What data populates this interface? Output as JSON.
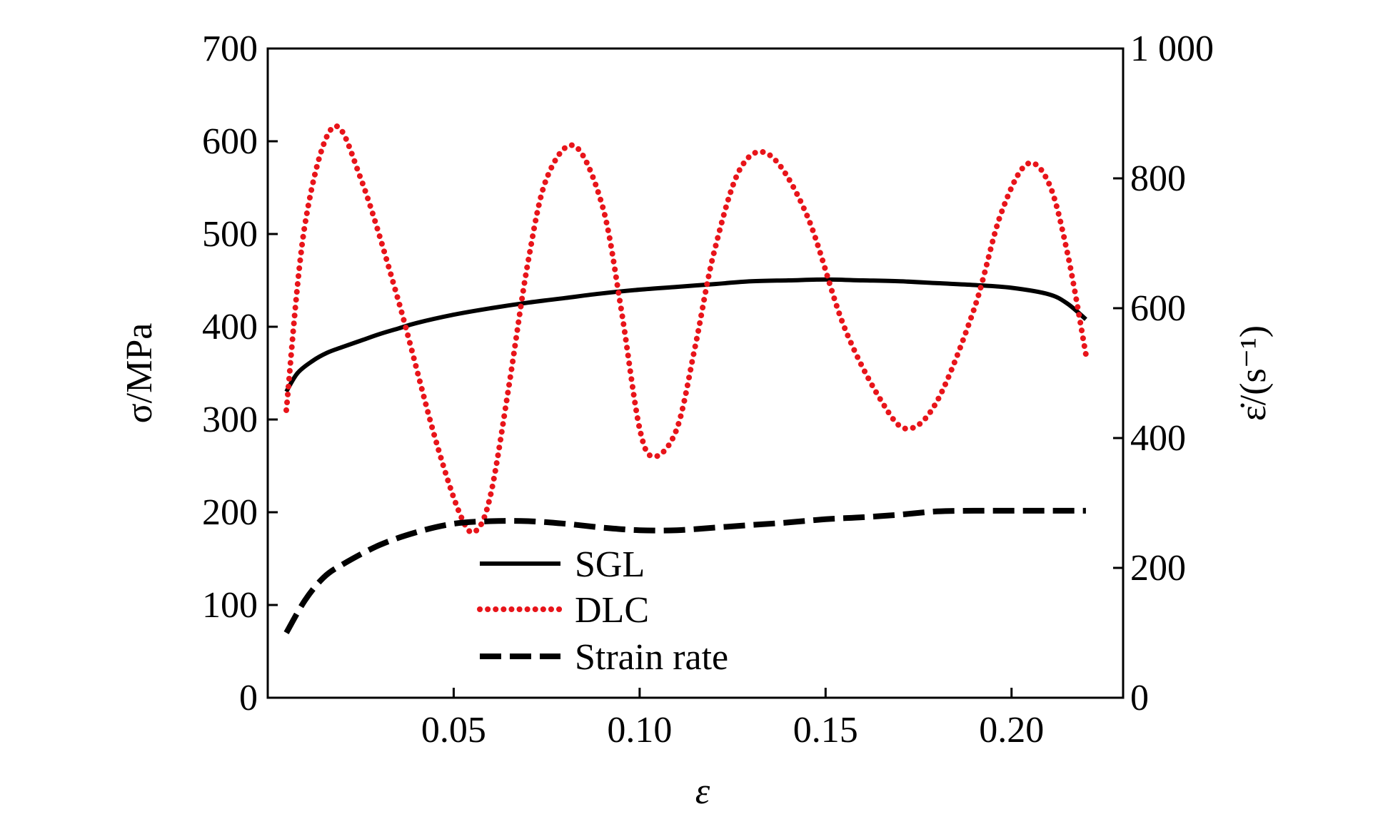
{
  "chart_data": {
    "type": "line",
    "title": "",
    "xlabel": "ε",
    "ylabel_left": "σ/MPa",
    "ylabel_right": "ε̇/(s⁻¹)",
    "xlim": [
      0.0,
      0.23
    ],
    "ylim_left": [
      0,
      700
    ],
    "ylim_right": [
      0,
      1000
    ],
    "x_ticks": [
      0.05,
      0.1,
      0.15,
      0.2
    ],
    "x_tick_labels": [
      "0.05",
      "0.10",
      "0.15",
      "0.20"
    ],
    "y_left_ticks": [
      0,
      100,
      200,
      300,
      400,
      500,
      600,
      700
    ],
    "y_left_tick_labels": [
      "0",
      "100",
      "200",
      "300",
      "400",
      "500",
      "600",
      "700"
    ],
    "y_right_ticks": [
      0,
      200,
      400,
      600,
      800,
      1000
    ],
    "y_right_tick_labels": [
      "0",
      "200",
      "400",
      "600",
      "800",
      "1 000"
    ],
    "grid": false,
    "legend_position": "lower-center",
    "series": [
      {
        "name": "SGL",
        "axis": "left",
        "color": "#000000",
        "style": "solid",
        "x": [
          0.005,
          0.008,
          0.012,
          0.016,
          0.02,
          0.025,
          0.03,
          0.035,
          0.04,
          0.05,
          0.06,
          0.07,
          0.08,
          0.09,
          0.1,
          0.11,
          0.12,
          0.13,
          0.14,
          0.15,
          0.16,
          0.17,
          0.18,
          0.19,
          0.2,
          0.21,
          0.215,
          0.22
        ],
        "values": [
          330,
          350,
          363,
          372,
          378,
          385,
          392,
          398,
          404,
          413,
          420,
          426,
          431,
          436,
          440,
          443,
          446,
          449,
          450,
          451,
          450,
          449,
          447,
          445,
          442,
          435,
          425,
          408
        ]
      },
      {
        "name": "DLC",
        "axis": "left",
        "color": "#e8141a",
        "style": "dotted",
        "x": [
          0.005,
          0.01,
          0.0175,
          0.025,
          0.035,
          0.045,
          0.052,
          0.056,
          0.06,
          0.065,
          0.07,
          0.075,
          0.0825,
          0.09,
          0.095,
          0.1,
          0.104,
          0.11,
          0.115,
          0.12,
          0.127,
          0.135,
          0.145,
          0.155,
          0.165,
          0.172,
          0.18,
          0.19,
          0.197,
          0.204,
          0.21,
          0.215,
          0.22
        ],
        "values": [
          310,
          510,
          615,
          560,
          430,
          280,
          195,
          180,
          220,
          340,
          470,
          560,
          595,
          530,
          420,
          290,
          260,
          290,
          380,
          480,
          570,
          585,
          520,
          400,
          320,
          290,
          320,
          420,
          520,
          575,
          555,
          480,
          370
        ]
      },
      {
        "name": "Strain rate",
        "axis": "right",
        "color": "#000000",
        "style": "dashed",
        "x": [
          0.005,
          0.01,
          0.015,
          0.02,
          0.03,
          0.04,
          0.05,
          0.06,
          0.07,
          0.08,
          0.09,
          0.1,
          0.11,
          0.12,
          0.13,
          0.14,
          0.15,
          0.16,
          0.17,
          0.18,
          0.19,
          0.2,
          0.21,
          0.22
        ],
        "values": [
          100,
          150,
          185,
          205,
          235,
          255,
          268,
          272,
          272,
          268,
          262,
          258,
          258,
          262,
          266,
          270,
          275,
          278,
          282,
          287,
          288,
          288,
          288,
          288
        ]
      }
    ]
  }
}
